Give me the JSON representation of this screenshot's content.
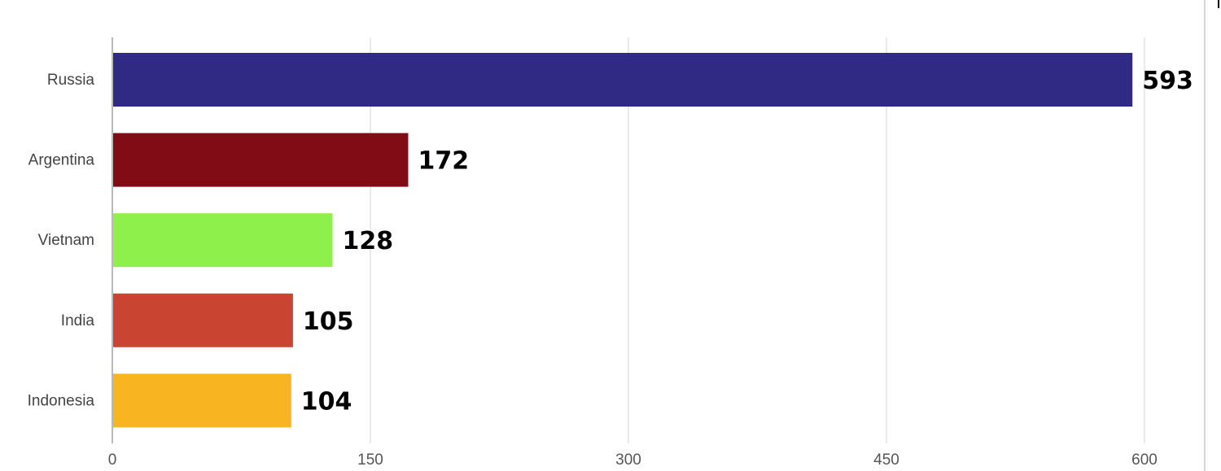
{
  "chart_data": {
    "type": "bar",
    "orientation": "horizontal",
    "categories": [
      "Russia",
      "Argentina",
      "Vietnam",
      "India",
      "Indonesia"
    ],
    "values": [
      593,
      172,
      128,
      105,
      104
    ],
    "colors": [
      "#302a85",
      "#820c15",
      "#8ef04a",
      "#c94532",
      "#f9b521"
    ],
    "xlim": [
      0,
      600
    ],
    "xticks": [
      0,
      150,
      300,
      450,
      600
    ],
    "xtick_labels": [
      "0",
      "150",
      "300",
      "450",
      "600"
    ],
    "grid": "vertical",
    "title": "",
    "xlabel": "",
    "ylabel": ""
  }
}
